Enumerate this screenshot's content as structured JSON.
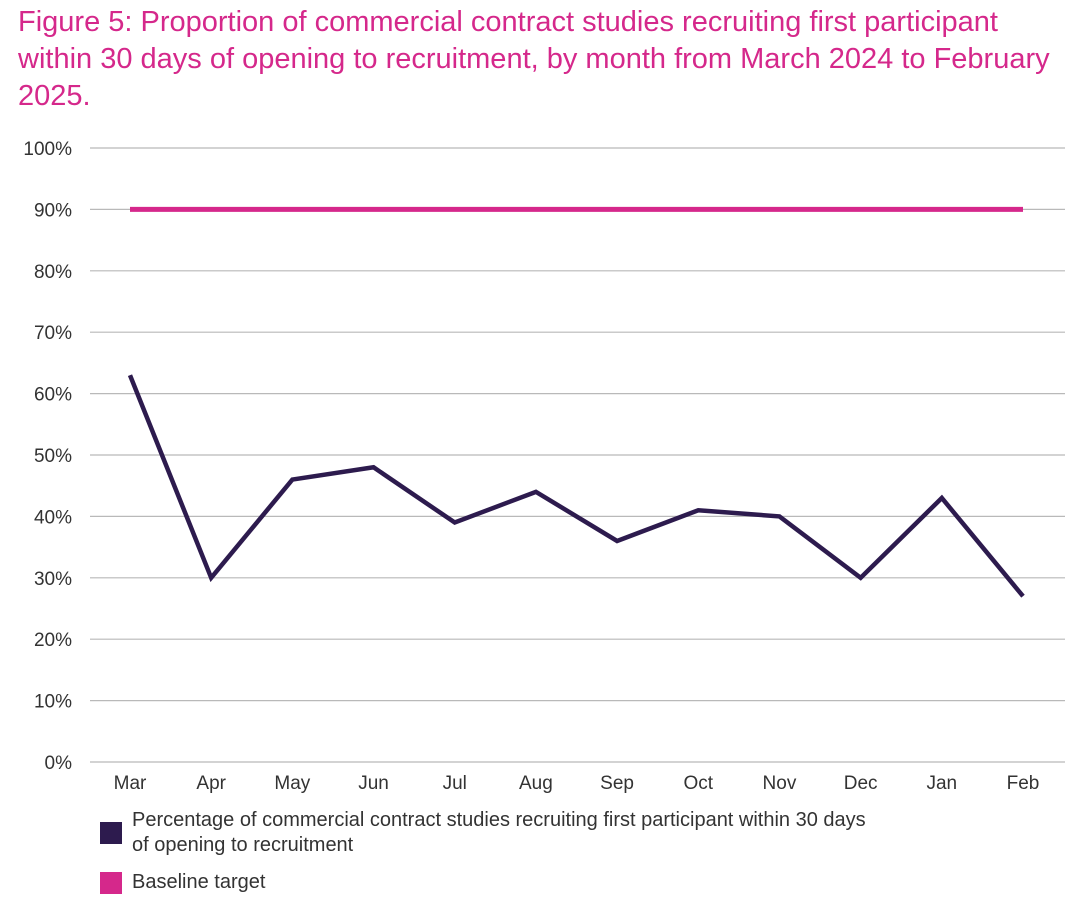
{
  "colors": {
    "title": "#d5288b",
    "series": "#2d1b4e",
    "baseline": "#d5288b",
    "grid": "#b9b9b9",
    "text": "#333333"
  },
  "chart_data": {
    "type": "line",
    "title": "Figure 5: Proportion of commercial contract studies recruiting first participant within 30 days of opening to recruitment, by month from March 2024 to February 2025.",
    "xlabel": "",
    "ylabel": "",
    "ylim": [
      0,
      100
    ],
    "y_ticks": [
      "0%",
      "10%",
      "20%",
      "30%",
      "40%",
      "50%",
      "60%",
      "70%",
      "80%",
      "90%",
      "100%"
    ],
    "y_tick_values": [
      0,
      10,
      20,
      30,
      40,
      50,
      60,
      70,
      80,
      90,
      100
    ],
    "categories": [
      "Mar",
      "Apr",
      "May",
      "Jun",
      "Jul",
      "Aug",
      "Sep",
      "Oct",
      "Nov",
      "Dec",
      "Jan",
      "Feb"
    ],
    "series": [
      {
        "name": "Percentage of commercial contract studies recruiting first participant within 30 days of opening to recruitment",
        "values": [
          63,
          30,
          46,
          48,
          39,
          44,
          36,
          41,
          40,
          30,
          43,
          27
        ]
      },
      {
        "name": "Baseline target",
        "values": [
          90,
          90,
          90,
          90,
          90,
          90,
          90,
          90,
          90,
          90,
          90,
          90
        ]
      }
    ],
    "legend_position": "bottom-left",
    "grid": true
  },
  "legend": {
    "series_line1": "Percentage of commercial contract studies recruiting first participant within 30 days",
    "series_line2": "of opening to recruitment",
    "baseline": "Baseline target"
  }
}
